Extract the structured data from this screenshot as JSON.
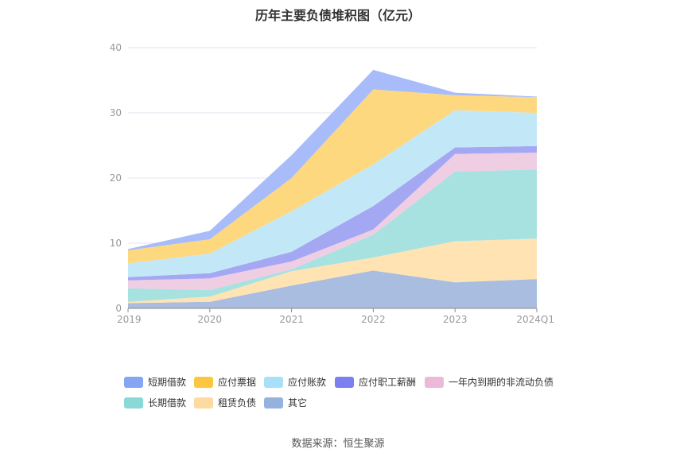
{
  "title": "历年主要负债堆积图（亿元）",
  "source": {
    "label": "数据来源：",
    "value": "恒生聚源"
  },
  "chart_data": {
    "type": "area",
    "stacked": true,
    "title": "历年主要负债堆积图（亿元）",
    "categories": [
      "2019",
      "2020",
      "2021",
      "2022",
      "2023",
      "2024Q1"
    ],
    "ylim": [
      0,
      40
    ],
    "yticks": [
      0,
      10,
      20,
      30,
      40
    ],
    "grid": true,
    "legend_position": "bottom",
    "series": [
      {
        "name": "其它",
        "color": "#a9bde0",
        "values": [
          0.8,
          1.0,
          3.5,
          5.8,
          4.0,
          4.5
        ]
      },
      {
        "name": "租赁负债",
        "color": "#ffe3b3",
        "values": [
          0.2,
          0.8,
          2.2,
          2.0,
          6.3,
          6.2
        ]
      },
      {
        "name": "长期借款",
        "color": "#a8e2e0",
        "values": [
          2.1,
          1.0,
          0.3,
          3.5,
          10.7,
          10.6
        ]
      },
      {
        "name": "一年内到期的非流动负债",
        "color": "#efcde3",
        "values": [
          1.2,
          1.8,
          1.2,
          0.8,
          2.7,
          2.6
        ]
      },
      {
        "name": "应付职工薪酬",
        "color": "#a4a8f2",
        "values": [
          0.5,
          0.8,
          1.5,
          3.6,
          1.0,
          1.0
        ]
      },
      {
        "name": "应付账款",
        "color": "#c2e8f8",
        "values": [
          2.1,
          3.0,
          6.2,
          6.4,
          5.7,
          5.1
        ]
      },
      {
        "name": "应付票据",
        "color": "#fed87f",
        "values": [
          2.0,
          2.2,
          5.1,
          11.5,
          2.3,
          2.4
        ]
      },
      {
        "name": "短期借款",
        "color": "#a8bcfa",
        "values": [
          0.2,
          1.3,
          3.5,
          3.0,
          0.4,
          0.1
        ]
      }
    ]
  },
  "legend": [
    {
      "name": "短期借款",
      "color": "#86a6f5"
    },
    {
      "name": "应付票据",
      "color": "#fcc63f"
    },
    {
      "name": "应付账款",
      "color": "#a8e0f8"
    },
    {
      "name": "应付职工薪酬",
      "color": "#7b7ff0"
    },
    {
      "name": "一年内到期的非流动负债",
      "color": "#ebbad8"
    },
    {
      "name": "长期借款",
      "color": "#8ad9d6"
    },
    {
      "name": "租赁负债",
      "color": "#fddaa0"
    },
    {
      "name": "其它",
      "color": "#95b2df"
    }
  ]
}
